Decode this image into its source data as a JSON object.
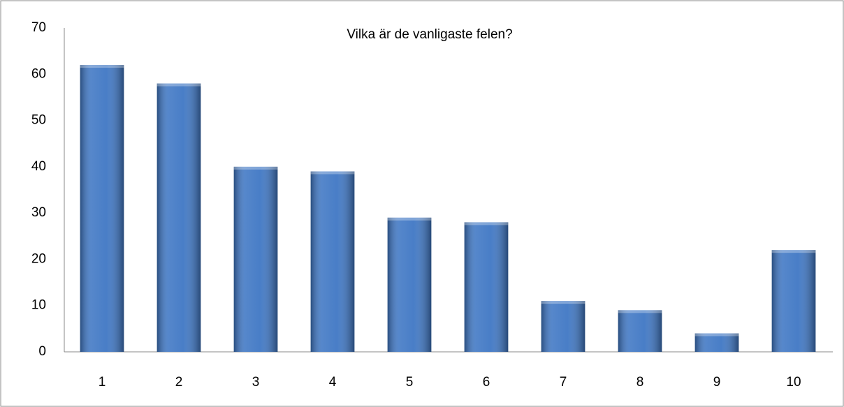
{
  "chart_data": {
    "type": "bar",
    "title": "Vilka är de vanligaste felen?",
    "categories": [
      "1",
      "2",
      "3",
      "4",
      "5",
      "6",
      "7",
      "8",
      "9",
      "10"
    ],
    "values": [
      62,
      58,
      40,
      39,
      29,
      28,
      11,
      9,
      4,
      22
    ],
    "color": "#3f77c4",
    "ylim": [
      0,
      70
    ],
    "yticks": [
      0,
      10,
      20,
      30,
      40,
      50,
      60,
      70
    ],
    "grid": false
  }
}
